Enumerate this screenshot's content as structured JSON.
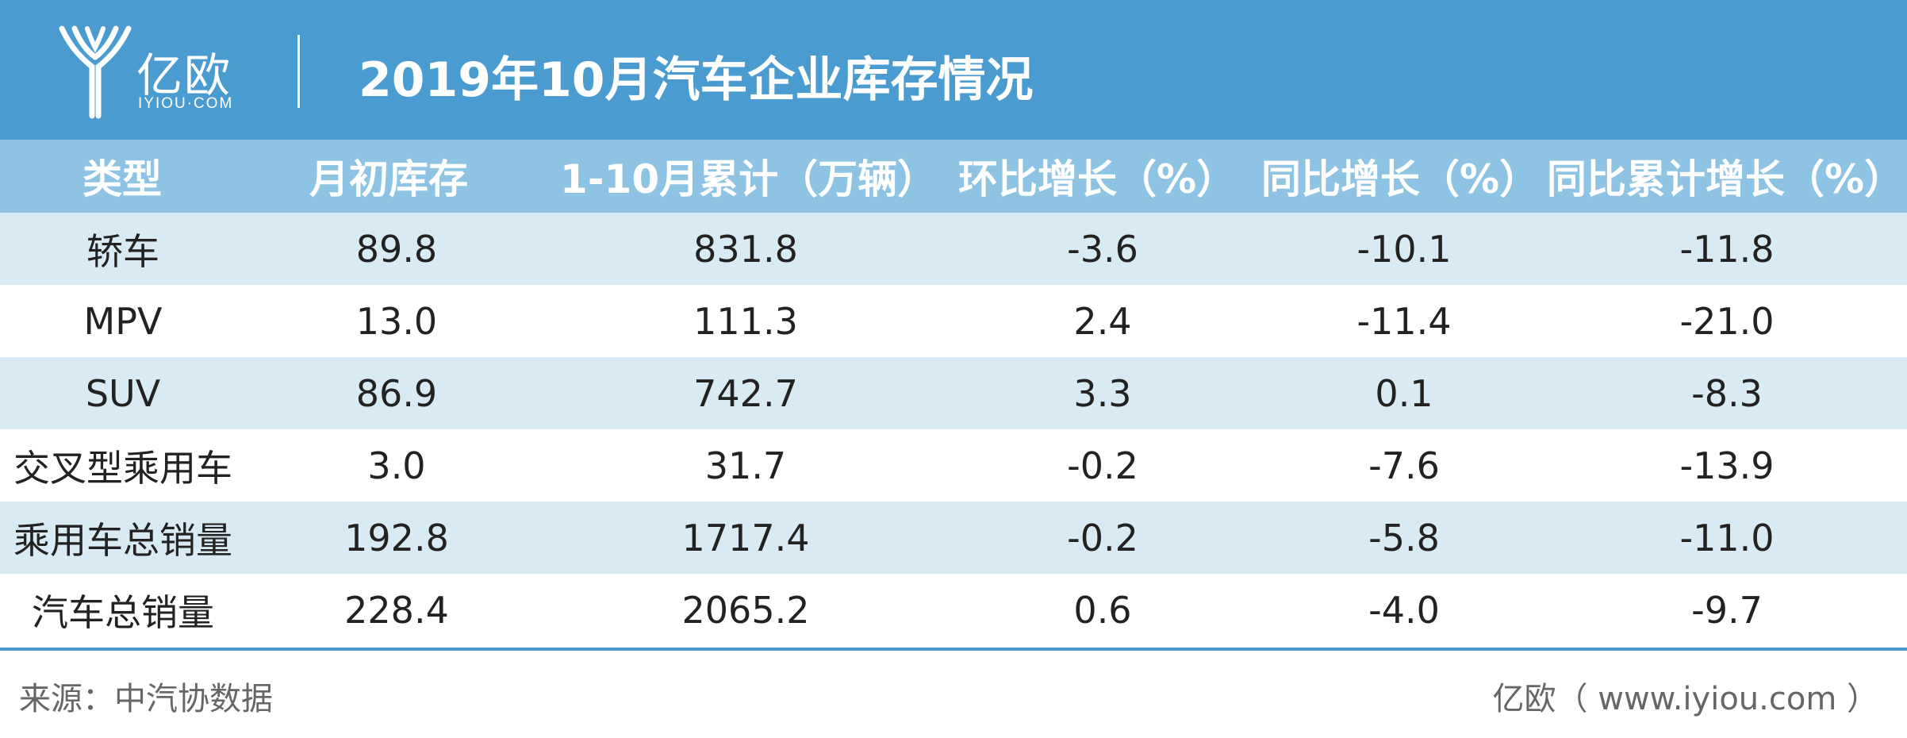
{
  "header": {
    "logo_text": "亿欧",
    "logo_subtext": "IYIOU·COM",
    "title": "2019年10月汽车企业库存情况",
    "background_color": "#4a9bcf"
  },
  "table": {
    "columns": [
      "类型",
      "月初库存",
      "1-10月累计（万辆）",
      "环比增长（%）",
      "同比增长（%）",
      "同比累计增长（%）"
    ],
    "rows": [
      [
        "轿车",
        "89.8",
        "831.8",
        "-3.6",
        "-10.1",
        "-11.8"
      ],
      [
        "MPV",
        "13.0",
        "111.3",
        "2.4",
        "-11.4",
        "-21.0"
      ],
      [
        "SUV",
        "86.9",
        "742.7",
        "3.3",
        "0.1",
        "-8.3"
      ],
      [
        "交叉型乘用车",
        "3.0",
        "31.7",
        "-0.2",
        "-7.6",
        "-13.9"
      ],
      [
        "乘用车总销量",
        "192.8",
        "1717.4",
        "-0.2",
        "-5.8",
        "-11.0"
      ],
      [
        "汽车总销量",
        "228.4",
        "2065.2",
        "0.6",
        "-4.0",
        "-9.7"
      ]
    ],
    "header_color": "#8ec3e4",
    "shaded_row_color": "#d8ebf5"
  },
  "footer": {
    "source": "来源：中汽协数据",
    "credit": "亿欧（ www.iyiou.com ）"
  }
}
